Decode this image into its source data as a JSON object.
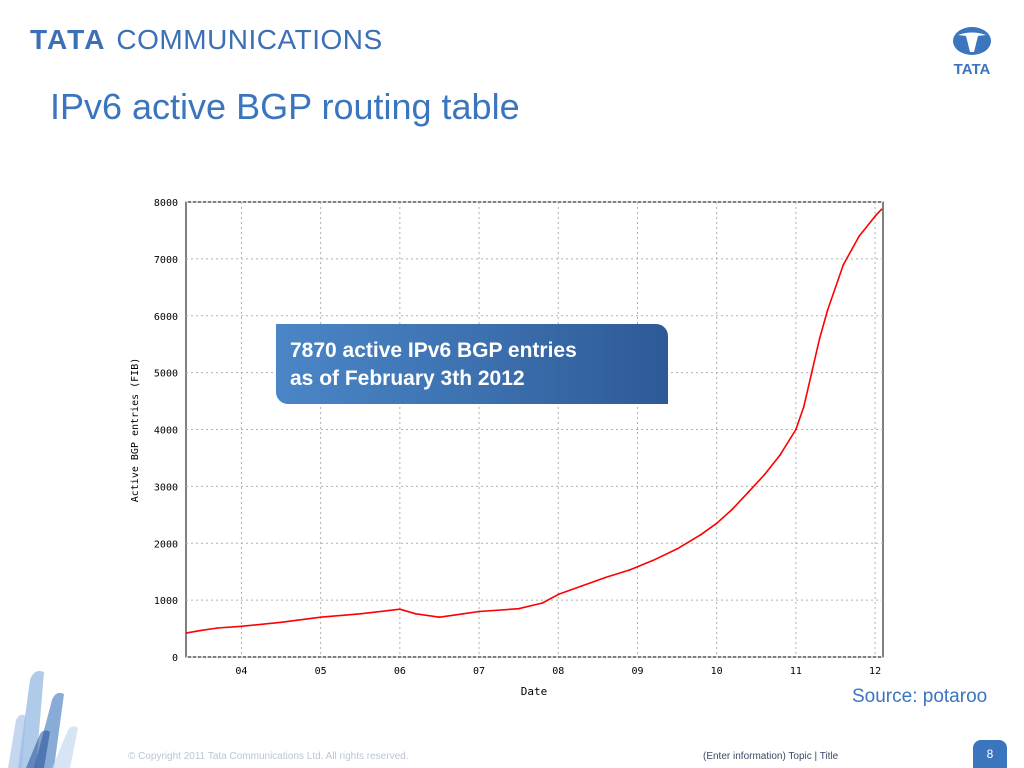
{
  "header": {
    "brand_left": "TATA",
    "brand_right": "COMMUNICATIONS",
    "emblem_text": "TATA",
    "slide_title": "IPv6 active BGP routing table"
  },
  "callout": {
    "line1": "7870 active IPv6 BGP entries",
    "line2": "as of February 3th 2012"
  },
  "source_note": "Source: potaroo",
  "footer": {
    "copyright": "© Copyright 2011 Tata Communications Ltd. All rights reserved.",
    "topic": "(Enter  information) Topic | Title",
    "page_number": "8"
  },
  "colors": {
    "brand_blue": "#3b75bd",
    "series_red": "#ff0000",
    "grid_gray": "#b0b0b0"
  },
  "chart_data": {
    "type": "line",
    "title": "",
    "xlabel": "Date",
    "ylabel": "Active BGP entries (FIB)",
    "xlim": [
      2003.3,
      2012.1
    ],
    "ylim": [
      0,
      8000
    ],
    "x_ticks": [
      {
        "value": 2004,
        "label": "04"
      },
      {
        "value": 2005,
        "label": "05"
      },
      {
        "value": 2006,
        "label": "06"
      },
      {
        "value": 2007,
        "label": "07"
      },
      {
        "value": 2008,
        "label": "08"
      },
      {
        "value": 2009,
        "label": "09"
      },
      {
        "value": 2010,
        "label": "10"
      },
      {
        "value": 2011,
        "label": "11"
      },
      {
        "value": 2012,
        "label": "12"
      }
    ],
    "y_ticks": [
      0,
      1000,
      2000,
      3000,
      4000,
      5000,
      6000,
      7000,
      8000
    ],
    "grid": true,
    "series": [
      {
        "color": "#ff0000",
        "x": [
          2003.3,
          2003.5,
          2003.7,
          2004.0,
          2004.5,
          2005.0,
          2005.5,
          2006.0,
          2006.2,
          2006.5,
          2006.8,
          2007.0,
          2007.5,
          2007.8,
          2008.0,
          2008.3,
          2008.6,
          2008.9,
          2009.2,
          2009.5,
          2009.8,
          2010.0,
          2010.2,
          2010.4,
          2010.6,
          2010.8,
          2011.0,
          2011.1,
          2011.2,
          2011.3,
          2011.4,
          2011.6,
          2011.8,
          2012.0,
          2012.08
        ],
        "y": [
          420,
          470,
          510,
          540,
          610,
          700,
          760,
          840,
          760,
          700,
          760,
          800,
          850,
          950,
          1100,
          1250,
          1400,
          1530,
          1700,
          1900,
          2150,
          2350,
          2600,
          2900,
          3200,
          3550,
          4000,
          4400,
          5000,
          5600,
          6100,
          6900,
          7400,
          7750,
          7870
        ]
      }
    ]
  }
}
